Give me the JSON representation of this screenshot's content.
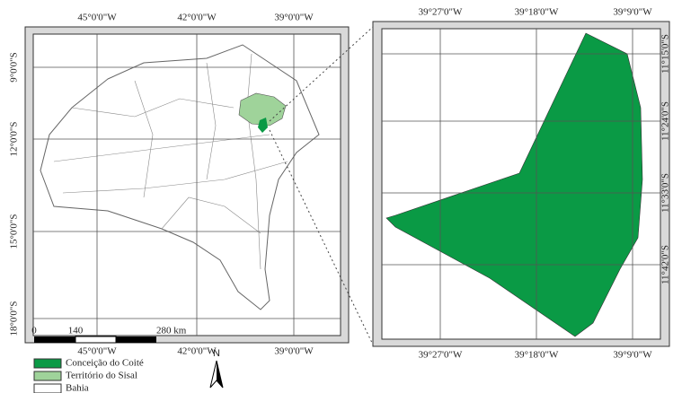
{
  "left_map": {
    "top_labels": [
      "45°0'0\"W",
      "42°0'0\"W",
      "39°0'0\"W"
    ],
    "bottom_labels": [
      "45°0'0\"W",
      "42°0'0\"W",
      "39°0'0\"W"
    ],
    "left_labels": [
      "9°0'0\"S",
      "12°0'0\"S",
      "15°0'0\"S",
      "18°0'0\"S"
    ]
  },
  "right_map": {
    "top_labels": [
      "39°27'0\"W",
      "39°18'0\"W",
      "39°9'0\"W"
    ],
    "bottom_labels": [
      "39°27'0\"W",
      "39°18'0\"W",
      "39°9'0\"W"
    ],
    "right_labels": [
      "11°15'0\"S",
      "11°24'0\"S",
      "11°33'0\"S",
      "11°42'0\"S"
    ]
  },
  "scale_bar": {
    "labels": [
      "0",
      "140",
      "280 km"
    ]
  },
  "legend": {
    "items": [
      "Conceição do Coité",
      "Território do Sisal",
      "Bahia"
    ]
  },
  "north_arrow": {
    "label": "N"
  }
}
